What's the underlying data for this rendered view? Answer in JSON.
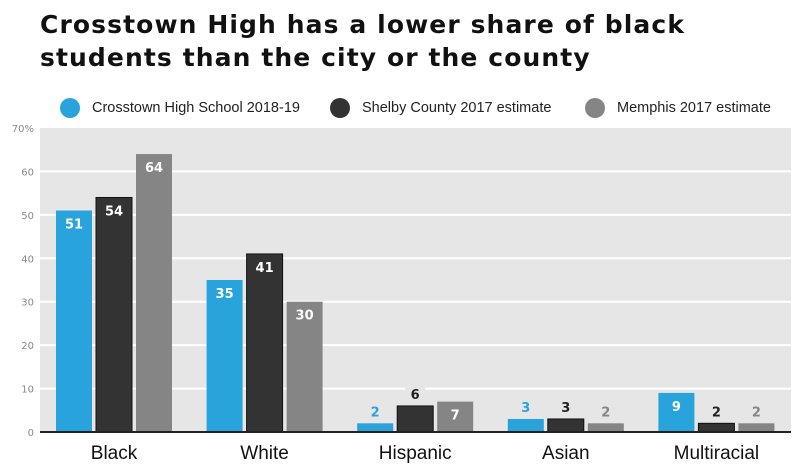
{
  "title": "Crosstown High has a lower share of black students than the city or the county",
  "colors": {
    "plot_background": "#e6e6e6",
    "gridline": "#ffffff",
    "axis": "#222222",
    "tick_label": "#888888"
  },
  "chart_data": {
    "type": "bar",
    "title": "Crosstown High has a lower share of black students than the city or the county",
    "xlabel": "",
    "ylabel": "",
    "categories": [
      "Black",
      "White",
      "Hispanic",
      "Asian",
      "Multiracial"
    ],
    "series": [
      {
        "name": "Crosstown High School 2018-19",
        "color": "#29a3dc",
        "label_color": "#29a3dc",
        "values": [
          51,
          35,
          2,
          3,
          9
        ]
      },
      {
        "name": "Shelby County 2017 estimate",
        "color": "#333333",
        "label_color": "#222222",
        "values": [
          54,
          41,
          6,
          3,
          2
        ]
      },
      {
        "name": "Memphis 2017 estimate",
        "color": "#858585",
        "label_color": "#858585",
        "values": [
          64,
          30,
          7,
          2,
          2
        ]
      }
    ],
    "ylim": [
      0,
      70
    ],
    "yticks": [
      0,
      10,
      20,
      30,
      40,
      50,
      60,
      70
    ],
    "ytick_labels": [
      "0",
      "10",
      "20",
      "30",
      "40",
      "50",
      "60",
      "70%"
    ],
    "grid": true,
    "legend_position": "top"
  }
}
